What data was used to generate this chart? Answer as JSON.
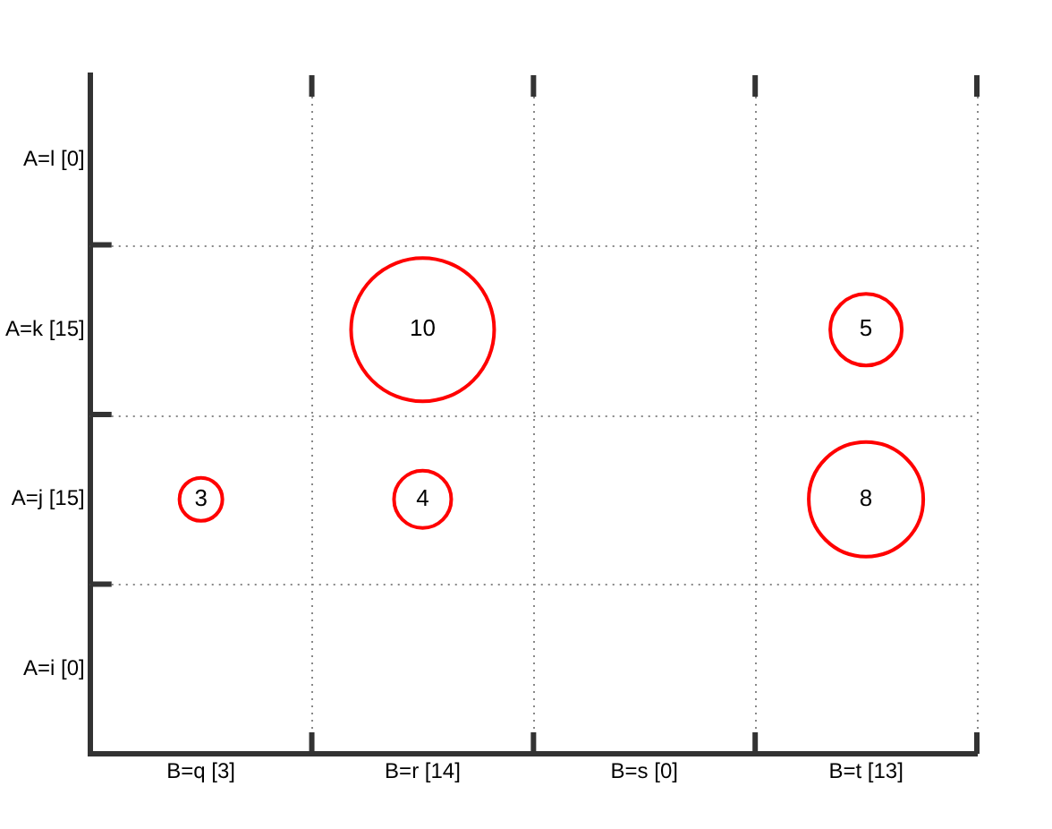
{
  "chart_data": {
    "type": "heatmap",
    "categories": [
      "B=q [3]",
      "B=r [14]",
      "B=s [0]",
      "B=t [13]"
    ],
    "y_categories": [
      "A=l [0]",
      "A=k [15]",
      "A=j [15]",
      "A=i [0]"
    ],
    "cells": [
      [
        null,
        null,
        null,
        null
      ],
      [
        null,
        10,
        null,
        5
      ],
      [
        3,
        4,
        null,
        8
      ],
      [
        null,
        null,
        null,
        null
      ]
    ],
    "color": "#ff0000",
    "grid": true,
    "data_labels": true
  }
}
